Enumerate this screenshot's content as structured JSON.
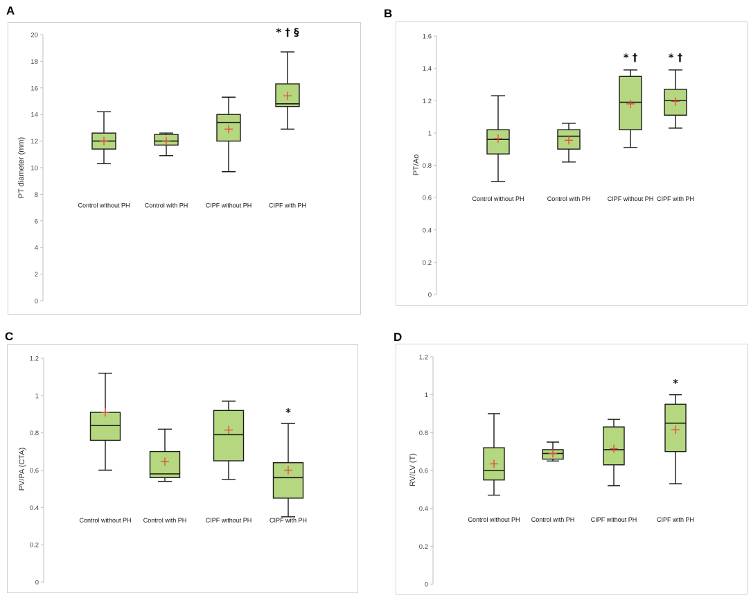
{
  "chart_data": [
    {
      "panel": "A",
      "type": "box",
      "title": "",
      "ylabel": "PT diameter (mm)",
      "ylim": [
        0,
        20
      ],
      "yticks": [
        0,
        2,
        4,
        6,
        8,
        10,
        12,
        14,
        16,
        18,
        20
      ],
      "ytick_labels": [
        "0",
        "2",
        "4",
        "6",
        "8",
        "10",
        "12",
        "14",
        "16",
        "18",
        "20"
      ],
      "label_value": 7,
      "sig_offset": 0.9,
      "categories": [
        "Control without PH",
        "Control with PH",
        "CIPF without PH",
        "CIPF with PH"
      ],
      "boxes": [
        {
          "min": 10.3,
          "q1": 11.4,
          "median": 12.0,
          "q3": 12.6,
          "max": 14.2,
          "mean": 12.0,
          "sig": ""
        },
        {
          "min": 10.9,
          "q1": 11.7,
          "median": 12.0,
          "q3": 12.5,
          "max": 12.6,
          "mean": 12.0,
          "sig": ""
        },
        {
          "min": 9.7,
          "q1": 12.0,
          "median": 13.4,
          "q3": 14.0,
          "max": 15.3,
          "mean": 12.9,
          "sig": ""
        },
        {
          "min": 12.9,
          "q1": 14.6,
          "median": 14.8,
          "q3": 16.3,
          "max": 18.7,
          "mean": 15.4,
          "sig": "* † §"
        }
      ]
    },
    {
      "panel": "B",
      "type": "box",
      "title": "",
      "ylabel": "PT/Ao",
      "ylim": [
        0,
        1.6
      ],
      "yticks": [
        0,
        0.2,
        0.4,
        0.6,
        0.8,
        1.0,
        1.2,
        1.4,
        1.6
      ],
      "ytick_labels": [
        "0",
        "0.2",
        "0.4",
        "0.6",
        "0.8",
        "1",
        "1.2",
        "1.4",
        "1.6"
      ],
      "label_value": 0.58,
      "sig_offset": 0.03,
      "categories": [
        "Control without PH",
        "Control with PH",
        "CIPF without PH",
        "CIPF with PH"
      ],
      "boxes": [
        {
          "min": 0.7,
          "q1": 0.87,
          "median": 0.96,
          "q3": 1.02,
          "max": 1.23,
          "mean": 0.965,
          "sig": ""
        },
        {
          "min": 0.82,
          "q1": 0.9,
          "median": 0.98,
          "q3": 1.02,
          "max": 1.06,
          "mean": 0.955,
          "sig": ""
        },
        {
          "min": 0.91,
          "q1": 1.02,
          "median": 1.19,
          "q3": 1.35,
          "max": 1.39,
          "mean": 1.18,
          "sig": "* †"
        },
        {
          "min": 1.03,
          "q1": 1.11,
          "median": 1.2,
          "q3": 1.27,
          "max": 1.39,
          "mean": 1.195,
          "sig": "* †"
        }
      ]
    },
    {
      "panel": "C",
      "type": "box",
      "title": "",
      "ylabel": "PV/PA (CTA)",
      "ylim": [
        0,
        1.2
      ],
      "yticks": [
        0,
        0.2,
        0.4,
        0.6,
        0.8,
        1.0,
        1.2
      ],
      "ytick_labels": [
        "0",
        "0.2",
        "0.4",
        "0.6",
        "0.8",
        "1",
        "1.2"
      ],
      "label_value": 0.32,
      "sig_offset": 0.02,
      "categories": [
        "Control without PH",
        "Control with PH",
        "CIPF without PH",
        "CIPF with PH"
      ],
      "boxes": [
        {
          "min": 0.6,
          "q1": 0.76,
          "median": 0.84,
          "q3": 0.91,
          "max": 1.12,
          "mean": 0.91,
          "sig": ""
        },
        {
          "min": 0.54,
          "q1": 0.56,
          "median": 0.58,
          "q3": 0.7,
          "max": 0.82,
          "mean": 0.645,
          "sig": ""
        },
        {
          "min": 0.55,
          "q1": 0.65,
          "median": 0.79,
          "q3": 0.92,
          "max": 0.97,
          "mean": 0.815,
          "sig": ""
        },
        {
          "min": 0.35,
          "q1": 0.45,
          "median": 0.56,
          "q3": 0.64,
          "max": 0.85,
          "mean": 0.6,
          "sig": "*"
        }
      ]
    },
    {
      "panel": "D",
      "type": "box",
      "title": "",
      "ylabel": "RV/LV (T)",
      "ylim": [
        0,
        1.2
      ],
      "yticks": [
        0,
        0.2,
        0.4,
        0.6,
        0.8,
        1.0,
        1.2
      ],
      "ytick_labels": [
        "0",
        "0.2",
        "0.4",
        "0.6",
        "0.8",
        "1",
        "1.2"
      ],
      "label_value": 0.33,
      "sig_offset": 0.02,
      "categories": [
        "Control without PH",
        "Control with PH",
        "CIPF without PH",
        "CIPF with PH"
      ],
      "boxes": [
        {
          "min": 0.47,
          "q1": 0.55,
          "median": 0.6,
          "q3": 0.72,
          "max": 0.9,
          "mean": 0.635,
          "sig": ""
        },
        {
          "min": 0.65,
          "q1": 0.66,
          "median": 0.69,
          "q3": 0.71,
          "max": 0.75,
          "mean": 0.69,
          "sig": ""
        },
        {
          "min": 0.52,
          "q1": 0.63,
          "median": 0.71,
          "q3": 0.83,
          "max": 0.87,
          "mean": 0.715,
          "sig": ""
        },
        {
          "min": 0.53,
          "q1": 0.7,
          "median": 0.85,
          "q3": 0.95,
          "max": 1.0,
          "mean": 0.815,
          "sig": "*"
        }
      ]
    }
  ],
  "colors": {
    "box_fill": "#b5d77f",
    "box_stroke": "#1a1a1a",
    "mean_marker": "#e8453c",
    "frame": "#cfcfcf",
    "axis": "#bdbdbd"
  }
}
